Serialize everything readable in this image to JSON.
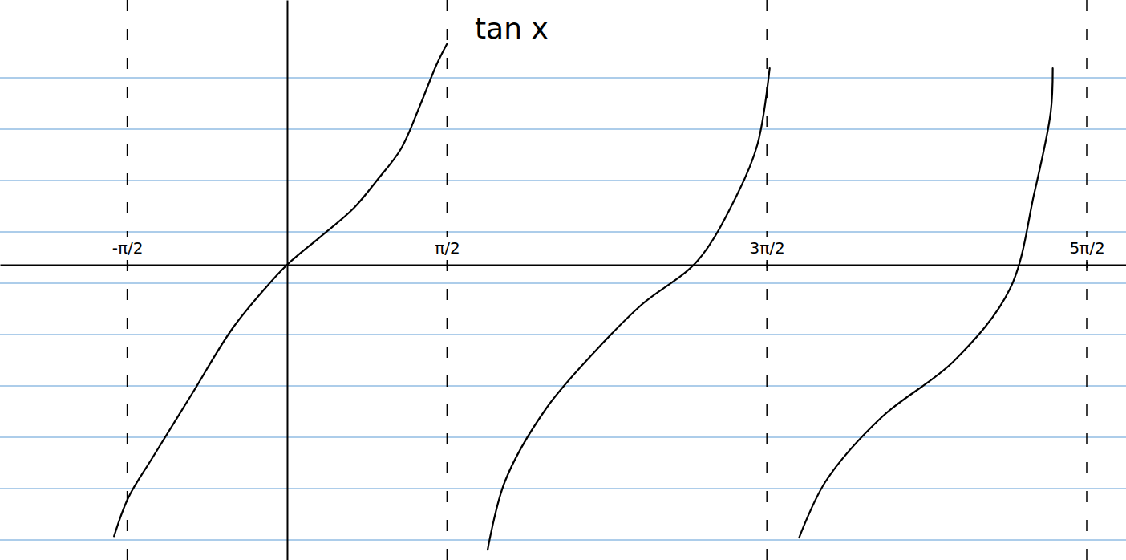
{
  "chart_data": {
    "type": "line",
    "title": "tan x",
    "xlim": [
      -2.82,
      8.24
    ],
    "ylim": [
      -4.6,
      4.125
    ],
    "xticks": [
      {
        "value": -1.5708,
        "label": "-π/2"
      },
      {
        "value": 1.5708,
        "label": "π/2"
      },
      {
        "value": 4.7124,
        "label": "3π/2"
      },
      {
        "value": 7.854,
        "label": "5π/2"
      }
    ],
    "grid": true,
    "tick_labels": "x",
    "series": [
      {
        "color": "#000000",
        "x": [
          -1.7,
          -1.56,
          -1.32,
          -0.93,
          -0.54,
          -0.22,
          0,
          0.33,
          0.65,
          0.88,
          1.12,
          1.31,
          1.47,
          1.57
        ],
        "values": [
          -4.23,
          -3.63,
          -3.0,
          -2.0,
          -1.0,
          -0.375,
          0,
          0.44,
          0.875,
          1.31,
          1.81,
          2.5,
          3.125,
          3.44
        ]
      },
      {
        "color": "#000000",
        "x": [
          1.97,
          2.14,
          2.54,
          3.01,
          3.48,
          4.03,
          4.43,
          4.62,
          4.74
        ],
        "values": [
          -4.44,
          -3.375,
          -2.25,
          -1.375,
          -0.625,
          0.06,
          1.125,
          1.875,
          3.06
        ]
      },
      {
        "color": "#000000",
        "x": [
          5.03,
          5.29,
          5.84,
          6.55,
          7.1,
          7.34,
          7.5,
          7.52
        ],
        "values": [
          -4.25,
          -3.375,
          -2.375,
          -1.5,
          -0.375,
          1.125,
          2.375,
          3.06
        ]
      }
    ]
  }
}
